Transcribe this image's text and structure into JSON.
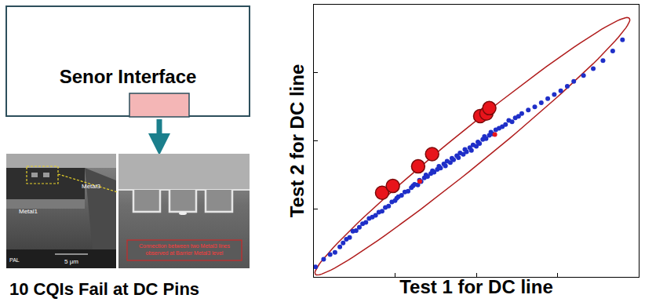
{
  "chart_data": {
    "type": "scatter",
    "x_label": "Test 1 for DC line",
    "y_label": "Test 2 for DC line",
    "xlim": [
      0,
      100
    ],
    "ylim": [
      0,
      100
    ],
    "xticks": [
      0,
      25,
      50,
      75,
      100
    ],
    "yticks": [
      0,
      25,
      50,
      75,
      100
    ],
    "tick_labels": false,
    "grid": false,
    "ellipse": {
      "x": [
        0.5,
        97.1
      ],
      "y": [
        0.9,
        95.1
      ],
      "half_width": 6,
      "color": "#b01c1c"
    },
    "series": [
      {
        "color": "#1f2fc8",
        "marker": "circle",
        "x": [
          0.5,
          3,
          5,
          6.5,
          8,
          9,
          10,
          11,
          12,
          13,
          14,
          15,
          16,
          17,
          18,
          19,
          20,
          21,
          22,
          23,
          24,
          25,
          25.5,
          26,
          27,
          28,
          29,
          30,
          30.5,
          31,
          32,
          32.5,
          33,
          34,
          34.5,
          35,
          36,
          36.5,
          37,
          38,
          38.5,
          39,
          40,
          40.5,
          41,
          42,
          42.5,
          43,
          44,
          44.5,
          45,
          46,
          46.5,
          47,
          48,
          48.5,
          49,
          50,
          50.5,
          51,
          52,
          52.5,
          53,
          54,
          54.5,
          55,
          56,
          57,
          58,
          59,
          60,
          61,
          62,
          63,
          64,
          66,
          68,
          70,
          72,
          74,
          76,
          78,
          80,
          83,
          86,
          89,
          92,
          95
        ],
        "y": [
          3.7,
          6.5,
          8.2,
          9,
          11,
          12.5,
          13.8,
          14.5,
          16.8,
          17,
          18.2,
          19.5,
          20,
          21.5,
          22,
          22.6,
          23.8,
          24.1,
          25.5,
          26,
          27.5,
          28,
          28.9,
          29.5,
          30,
          31.2,
          31.5,
          32.8,
          33.4,
          34,
          33.8,
          35.5,
          35,
          36.4,
          37.5,
          36.9,
          38,
          39,
          38.5,
          39.5,
          40.6,
          40,
          41.5,
          40.8,
          42.5,
          42,
          43.6,
          43,
          44.5,
          43.8,
          45.5,
          45,
          46.8,
          46,
          47.5,
          46.5,
          48.5,
          48,
          49.6,
          49,
          50.5,
          51.6,
          50.8,
          52,
          53.2,
          52.5,
          54,
          54.6,
          55.2,
          56,
          57.5,
          57,
          58.4,
          59,
          60,
          61.3,
          62.5,
          64,
          65.5,
          67,
          68.4,
          70,
          71.8,
          74,
          76.5,
          79.5,
          83,
          87.1
        ]
      },
      {
        "color": "#e8141b",
        "marker": "circle",
        "x": [
          32.6,
          55.7
        ],
        "y": [
          35.1,
          52.3
        ]
      },
      {
        "color": "#e8141b",
        "marker": "large_circle",
        "x": [
          21,
          24.3,
          32.1,
          36.4,
          51.2,
          53.1,
          54
        ],
        "y": [
          30.9,
          33.4,
          40.6,
          45.1,
          59.1,
          60,
          62
        ]
      }
    ]
  },
  "diagram": {
    "box_label": "Senor Interface",
    "caption": "10 CQIs Fail at DC Pins",
    "sem_labels": {
      "upper_layer": "Metal3",
      "lower_layer": "Metal1",
      "scale": "5 μm",
      "lab": "PAL"
    },
    "sem_note": "Connection between two Metal3 lines observed at Barrier Metal3 level"
  }
}
